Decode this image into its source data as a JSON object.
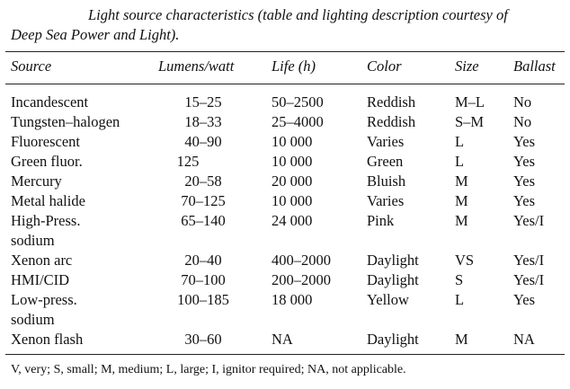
{
  "caption": {
    "text_line1": "Light source characteristics (table and lighting description courtesy of",
    "text_line2": "Deep Sea Power and Light)."
  },
  "table": {
    "headers": {
      "source": "Source",
      "lumens": "Lumens/watt",
      "life": "Life (h)",
      "color": "Color",
      "size": "Size",
      "ballast": "Ballast"
    },
    "rows": [
      {
        "source": [
          "Incandescent"
        ],
        "lumens": "15–25",
        "life": "50–2500",
        "color": "Reddish",
        "size": "M–L",
        "ballast": "No"
      },
      {
        "source": [
          "Tungsten–halogen"
        ],
        "lumens": "18–33",
        "life": "25–4000",
        "color": "Reddish",
        "size": "S–M",
        "ballast": "No"
      },
      {
        "source": [
          "Fluorescent"
        ],
        "lumens": "40–90",
        "life": "10 000",
        "color": "Varies",
        "size": "L",
        "ballast": "Yes"
      },
      {
        "source": [
          "Green fluor."
        ],
        "lumens": "125",
        "life": "10 000",
        "color": "Green",
        "size": "L",
        "ballast": "Yes"
      },
      {
        "source": [
          "Mercury"
        ],
        "lumens": "20–58",
        "life": "20 000",
        "color": "Bluish",
        "size": "M",
        "ballast": "Yes"
      },
      {
        "source": [
          "Metal halide"
        ],
        "lumens": "70–125",
        "life": "10 000",
        "color": "Varies",
        "size": "M",
        "ballast": "Yes"
      },
      {
        "source": [
          "High-Press.",
          "sodium"
        ],
        "lumens": "65–140",
        "life": "24 000",
        "color": "Pink",
        "size": "M",
        "ballast": "Yes/I"
      },
      {
        "source": [
          "Xenon arc"
        ],
        "lumens": "20–40",
        "life": "400–2000",
        "color": "Daylight",
        "size": "VS",
        "ballast": "Yes/I"
      },
      {
        "source": [
          "HMI/CID"
        ],
        "lumens": "70–100",
        "life": "200–2000",
        "color": "Daylight",
        "size": "S",
        "ballast": "Yes/I"
      },
      {
        "source": [
          "Low-press.",
          "sodium"
        ],
        "lumens": "100–185",
        "life": "18 000",
        "color": "Yellow",
        "size": "L",
        "ballast": "Yes"
      },
      {
        "source": [
          "Xenon flash"
        ],
        "lumens": "30–60",
        "life": "NA",
        "color": "Daylight",
        "size": "M",
        "ballast": "NA"
      }
    ]
  },
  "footnote": "V, very; S, small; M, medium; L, large; I, ignitor required; NA, not applicable."
}
